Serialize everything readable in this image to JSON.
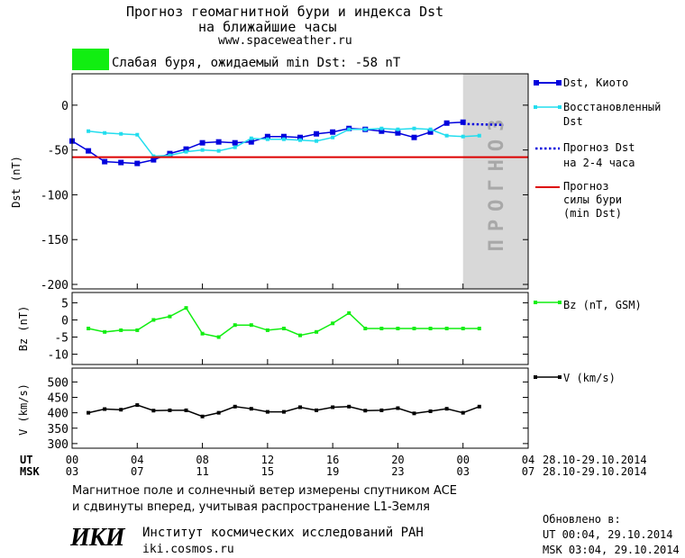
{
  "header": {
    "title_line1": "Прогноз геомагнитной бури и индекса Dst",
    "title_line2": "на ближайшие часы",
    "site": "www.spaceweather.ru"
  },
  "storm": {
    "label": "Слабая буря, ожидаемый min Dst: -58 nT",
    "indicator_color": "#11ee11"
  },
  "forecast_label": "ПРОГНОЗ",
  "legend": {
    "dst_kyoto": "Dst, Киото",
    "restored_l1": "Восстановленный",
    "restored_l2": "Dst",
    "forecast_l1": "Прогноз Dst",
    "forecast_l2": "на 2-4 часа",
    "storm_l1": "Прогноз",
    "storm_l2": "силы бури",
    "storm_l3": "(min Dst)",
    "bz": "Bz (nT, GSM)",
    "v": "V (km/s)"
  },
  "time_axis": {
    "ut_label": "UT",
    "msk_label": "MSK",
    "ut_ticks": [
      "00",
      "04",
      "08",
      "12",
      "16",
      "20",
      "00",
      "04"
    ],
    "msk_ticks": [
      "03",
      "07",
      "11",
      "15",
      "19",
      "23",
      "03",
      "07"
    ],
    "date_range_ut": "28.10-29.10.2014",
    "date_range_msk": "28.10-29.10.2014"
  },
  "footer": {
    "note_line1": "Магнитное поле и солнечный ветер измерены спутником ACE",
    "note_line2": "и сдвинуты вперед, учитывая распространение L1-Земля",
    "updated_label": "Обновлено в:",
    "updated_ut": "UT  00:04, 29.10.2014",
    "updated_msk": "MSK 03:04, 29.10.2014",
    "logo_text": "ИКИ",
    "institute": "Институт космических исследований РАН",
    "institute_url": "iki.cosmos.ru"
  },
  "chart_data": [
    {
      "type": "line",
      "panel": "dst",
      "ylabel": "Dst (nT)",
      "xlim": [
        0,
        28
      ],
      "ylim": [
        -205,
        35
      ],
      "yticks": [
        0,
        -50,
        -100,
        -150,
        -200
      ],
      "forecast_region_x": [
        24,
        28
      ],
      "series": [
        {
          "name": "Dst, Киото",
          "color": "#0000dd",
          "marker": "square",
          "x": [
            0,
            1,
            2,
            3,
            4,
            5,
            6,
            7,
            8,
            9,
            10,
            11,
            12,
            13,
            14,
            15,
            16,
            17,
            18,
            19,
            20,
            21,
            22,
            23,
            24
          ],
          "y": [
            -40,
            -51,
            -63,
            -64,
            -65,
            -61,
            -54,
            -49,
            -42,
            -41,
            -42,
            -41,
            -35,
            -35,
            -36,
            -32,
            -30,
            -26,
            -27,
            -29,
            -31,
            -36,
            -30,
            -20,
            -19
          ]
        },
        {
          "name": "Восстановленный Dst",
          "color": "#22ddee",
          "marker": "square",
          "x": [
            1,
            2,
            3,
            4,
            5,
            6,
            7,
            8,
            9,
            10,
            11,
            12,
            13,
            14,
            15,
            16,
            17,
            18,
            19,
            20,
            21,
            22,
            23,
            24,
            25
          ],
          "y": [
            -29,
            -31,
            -32,
            -33,
            -57,
            -56,
            -52,
            -50,
            -51,
            -47,
            -37,
            -38,
            -38,
            -39,
            -40,
            -36,
            -27,
            -27,
            -26,
            -27,
            -26,
            -27,
            -34,
            -35,
            -34
          ]
        },
        {
          "name": "Прогноз Dst на 2-4 часа",
          "color": "#0000dd",
          "style": "dotted",
          "x": [
            24,
            26.5
          ],
          "y": [
            -21,
            -22
          ]
        },
        {
          "name": "Прогноз силы бури (min Dst)",
          "color": "#dd0000",
          "x": [
            0,
            28
          ],
          "y": [
            -58,
            -58
          ]
        }
      ]
    },
    {
      "type": "line",
      "panel": "bz",
      "ylabel": "Bz (nT)",
      "xlim": [
        0,
        28
      ],
      "ylim": [
        -13,
        8
      ],
      "yticks": [
        5,
        0,
        -5,
        -10
      ],
      "series": [
        {
          "name": "Bz (nT, GSM)",
          "color": "#11ee11",
          "marker": "square",
          "x": [
            1,
            2,
            3,
            4,
            5,
            6,
            7,
            8,
            9,
            10,
            11,
            12,
            13,
            14,
            15,
            16,
            17,
            18,
            19,
            20,
            21,
            22,
            23,
            24,
            25
          ],
          "y": [
            -2.5,
            -3.5,
            -3,
            -3,
            0,
            1,
            3.5,
            -4,
            -5,
            -1.5,
            -1.5,
            -3,
            -2.5,
            -4.5,
            -3.5,
            -1,
            2,
            -2.5,
            -2.5,
            -2.5,
            -2.5,
            -2.5,
            -2.5,
            -2.5,
            -2.5
          ]
        }
      ]
    },
    {
      "type": "line",
      "panel": "v",
      "ylabel": "V (km/s)",
      "xlim": [
        0,
        28
      ],
      "ylim": [
        285,
        545
      ],
      "yticks": [
        500,
        450,
        400,
        350,
        300
      ],
      "series": [
        {
          "name": "V (km/s)",
          "color": "#000000",
          "marker": "square",
          "x": [
            1,
            2,
            3,
            4,
            5,
            6,
            7,
            8,
            9,
            10,
            11,
            12,
            13,
            14,
            15,
            16,
            17,
            18,
            19,
            20,
            21,
            22,
            23,
            24,
            25
          ],
          "y": [
            400,
            412,
            410,
            425,
            407,
            408,
            408,
            388,
            400,
            420,
            413,
            403,
            403,
            418,
            408,
            418,
            420,
            407,
            408,
            415,
            398,
            405,
            413,
            400,
            420
          ]
        }
      ]
    }
  ]
}
